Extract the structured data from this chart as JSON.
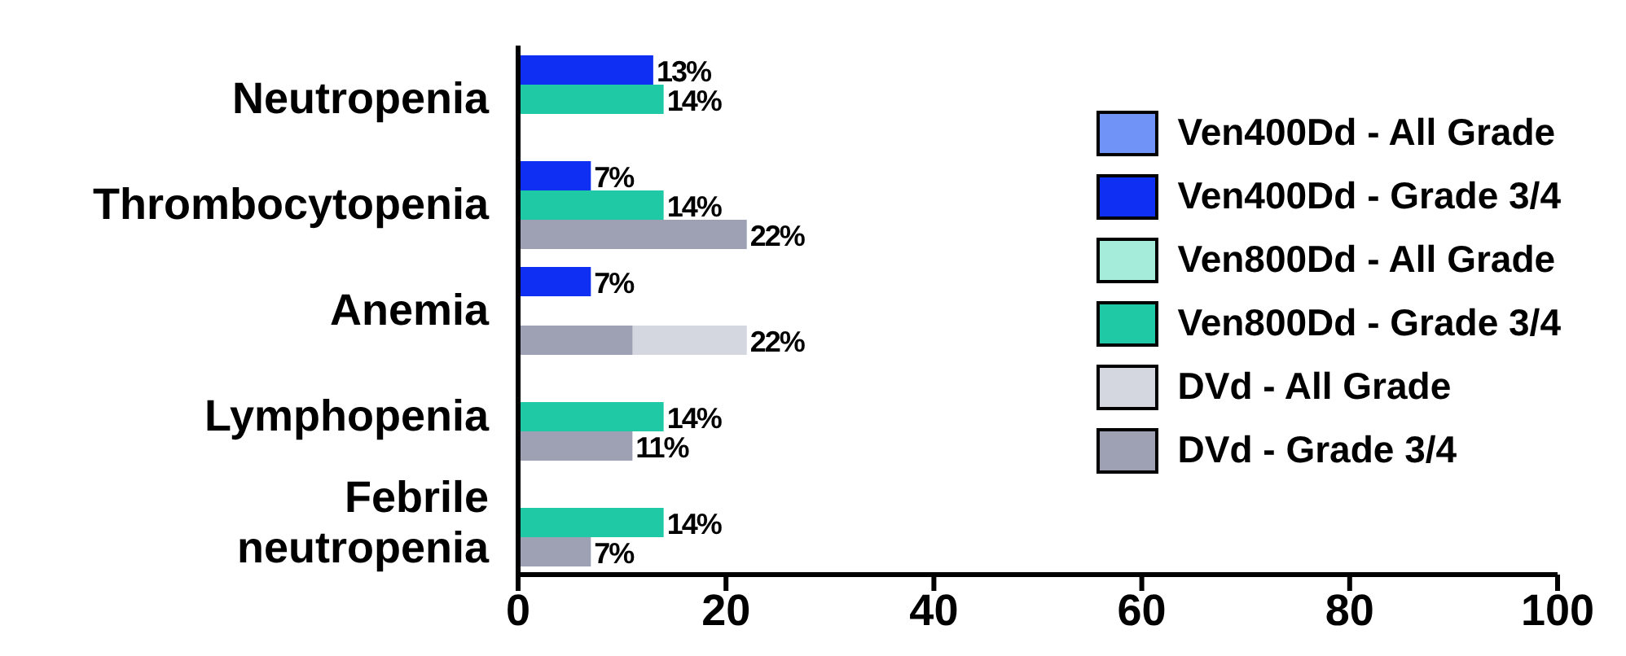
{
  "chart_data": {
    "type": "bar",
    "orientation": "horizontal",
    "categories": [
      "Neutropenia",
      "Thrombocytopenia",
      "Anemia",
      "Lymphopenia",
      "Febrile neutropenia"
    ],
    "series": [
      {
        "name": "Ven400Dd - All Grade",
        "color": "#6f93f7",
        "values": [
          null,
          null,
          null,
          null,
          null
        ]
      },
      {
        "name": "Ven400Dd - Grade 3/4",
        "color": "#0f2ff2",
        "values": [
          13,
          7,
          7,
          null,
          null
        ],
        "value_labels": [
          "13%",
          "7%",
          "7%",
          null,
          null
        ]
      },
      {
        "name": "Ven800Dd - All Grade",
        "color": "#a6ecda",
        "values": [
          null,
          null,
          null,
          null,
          null
        ]
      },
      {
        "name": "Ven800Dd - Grade 3/4",
        "color": "#1fc9a6",
        "values": [
          14,
          14,
          null,
          14,
          14
        ],
        "value_labels": [
          "14%",
          "14%",
          null,
          "14%",
          "14%"
        ]
      },
      {
        "name": "DVd - All Grade",
        "color": "#d5d7e0",
        "values": [
          null,
          null,
          22,
          null,
          null
        ],
        "value_labels": [
          null,
          null,
          "22%",
          null,
          null
        ]
      },
      {
        "name": "DVd - Grade 3/4",
        "color": "#9da1b3",
        "values": [
          null,
          22,
          11,
          11,
          7
        ],
        "value_labels": [
          null,
          "22%",
          null,
          "11%",
          "7%"
        ]
      }
    ],
    "xlim": [
      0,
      100
    ],
    "xticks": [
      0,
      20,
      40,
      60,
      80,
      100
    ],
    "legend": "right"
  }
}
